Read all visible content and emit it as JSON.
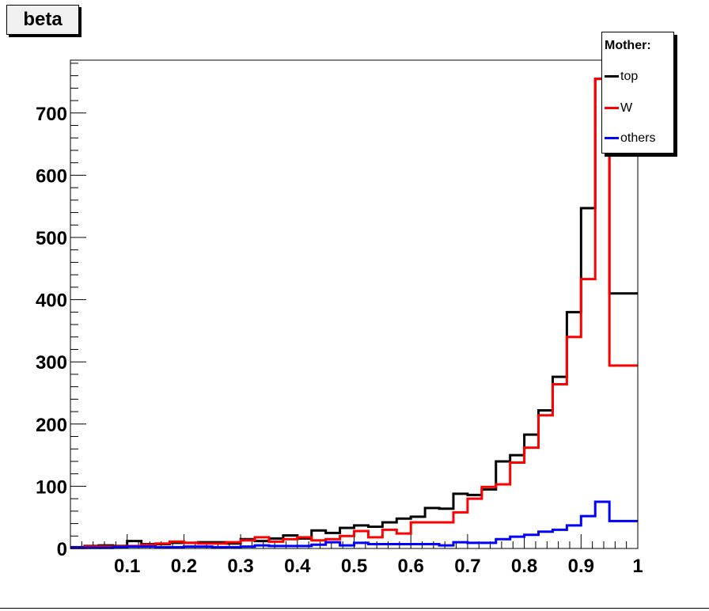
{
  "chart_data": {
    "type": "step-histogram",
    "title": "beta",
    "xlabel": "",
    "ylabel": "",
    "xlim": [
      0,
      1
    ],
    "ylim": [
      0,
      785
    ],
    "bin_width": 0.025,
    "x_tick_labels": [
      {
        "value": 0.1,
        "label": "0.1"
      },
      {
        "value": 0.2,
        "label": "0.2"
      },
      {
        "value": 0.3,
        "label": "0.3"
      },
      {
        "value": 0.4,
        "label": "0.4"
      },
      {
        "value": 0.5,
        "label": "0.5"
      },
      {
        "value": 0.6,
        "label": "0.6"
      },
      {
        "value": 0.7,
        "label": "0.7"
      },
      {
        "value": 0.8,
        "label": "0.8"
      },
      {
        "value": 0.9,
        "label": "0.9"
      },
      {
        "value": 1.0,
        "label": "1"
      }
    ],
    "y_tick_labels": [
      {
        "value": 0,
        "label": "0"
      },
      {
        "value": 100,
        "label": "100"
      },
      {
        "value": 200,
        "label": "200"
      },
      {
        "value": 300,
        "label": "300"
      },
      {
        "value": 400,
        "label": "400"
      },
      {
        "value": 500,
        "label": "500"
      },
      {
        "value": 600,
        "label": "600"
      },
      {
        "value": 700,
        "label": "700"
      }
    ],
    "legend": {
      "header": "Mother:",
      "placement": "top-right"
    },
    "series": [
      {
        "name": "top",
        "color": "#000000",
        "values": [
          2,
          4,
          5,
          4,
          12,
          7,
          7,
          9,
          9,
          10,
          10,
          8,
          15,
          12,
          16,
          21,
          16,
          29,
          25,
          33,
          37,
          35,
          42,
          48,
          51,
          65,
          64,
          88,
          86,
          95,
          140,
          150,
          183,
          222,
          276,
          380,
          547,
          755,
          410,
          410
        ]
      },
      {
        "name": "W",
        "color": "#ff0000",
        "values": [
          1,
          3,
          3,
          3,
          4,
          6,
          8,
          11,
          9,
          8,
          8,
          10,
          13,
          18,
          11,
          15,
          18,
          13,
          15,
          20,
          28,
          18,
          30,
          24,
          42,
          42,
          42,
          58,
          80,
          99,
          103,
          138,
          162,
          214,
          264,
          340,
          433,
          755,
          294,
          294
        ]
      },
      {
        "name": "others",
        "color": "#0000ff",
        "values": [
          1,
          1,
          1,
          2,
          3,
          3,
          2,
          2,
          3,
          3,
          2,
          2,
          3,
          5,
          4,
          4,
          4,
          6,
          10,
          5,
          9,
          7,
          7,
          7,
          7,
          7,
          5,
          10,
          9,
          9,
          15,
          19,
          22,
          27,
          30,
          37,
          52,
          75,
          44,
          44
        ]
      }
    ]
  }
}
